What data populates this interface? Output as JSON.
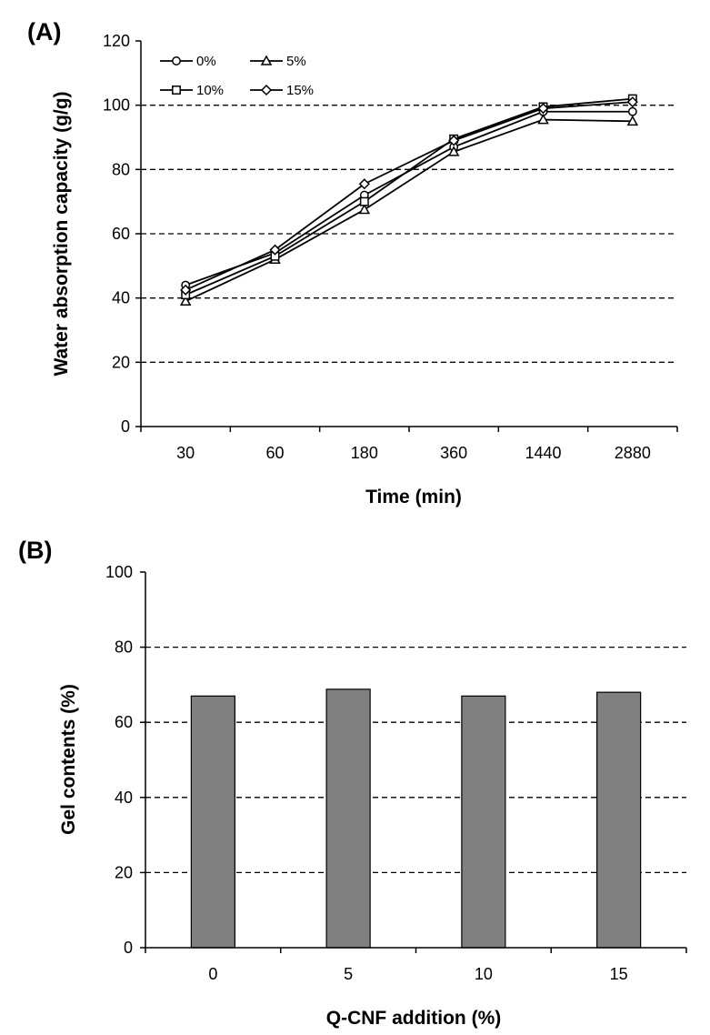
{
  "chart_data": [
    {
      "panel_label": "(A)",
      "type": "line",
      "categories": [
        "30",
        "60",
        "180",
        "360",
        "1440",
        "2880"
      ],
      "series": [
        {
          "name": "0%",
          "marker": "circle",
          "values": [
            44,
            54,
            72,
            87,
            98,
            98
          ]
        },
        {
          "name": "5%",
          "marker": "triangle",
          "values": [
            39,
            52,
            67.5,
            85.5,
            95.5,
            95
          ]
        },
        {
          "name": "10%",
          "marker": "square",
          "values": [
            41,
            53,
            70,
            89.5,
            99.5,
            102
          ]
        },
        {
          "name": "15%",
          "marker": "diamond",
          "values": [
            42.5,
            55,
            75.5,
            89,
            99,
            101
          ]
        }
      ],
      "xlabel": "Time (min)",
      "ylabel": "Water absorption capacity (g/g)",
      "ylim": [
        0,
        120
      ],
      "yticks": [
        "0",
        "20",
        "40",
        "60",
        "80",
        "100",
        "120"
      ],
      "grid": "horizontal dashed",
      "legend": "top-left"
    },
    {
      "panel_label": "(B)",
      "type": "bar",
      "categories": [
        "0",
        "5",
        "10",
        "15"
      ],
      "values": [
        67,
        68.8,
        67,
        68
      ],
      "xlabel": "Q-CNF addition (%)",
      "ylabel": "Gel contents (%)",
      "ylim": [
        0,
        100
      ],
      "yticks": [
        "0",
        "20",
        "40",
        "60",
        "80",
        "100"
      ],
      "grid": "horizontal dashed",
      "bar_color": "#808080"
    }
  ]
}
